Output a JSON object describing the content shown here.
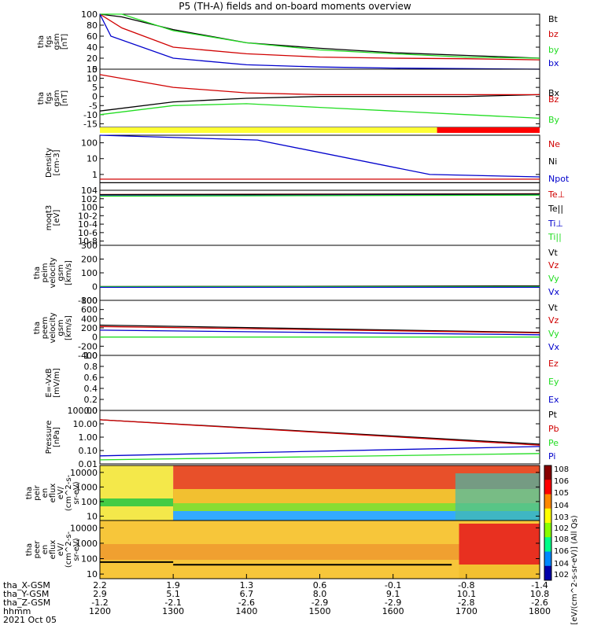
{
  "title": "P5 (TH-A) fields and on-board moments overview",
  "colors": {
    "black": "#000000",
    "red": "#d00000",
    "green": "#22dd22",
    "blue": "#0000cc",
    "yellow": "#ffff33",
    "bright_red": "#ff0000"
  },
  "chart_data": [
    {
      "id": "fgs_mag",
      "type": "line",
      "ylabel": [
        "tha",
        "fgs",
        "gsm",
        "[nT]"
      ],
      "ylim": [
        0,
        100
      ],
      "ticks": [
        "100",
        "80",
        "60",
        "40",
        "20",
        "0"
      ],
      "series": [
        {
          "name": "Bt",
          "color": "#000000",
          "x": [
            1200,
            1230,
            1300,
            1400,
            1500,
            1600,
            1700,
            1800
          ],
          "values": [
            100,
            95,
            72,
            48,
            38,
            30,
            25,
            20
          ]
        },
        {
          "name": "bz",
          "color": "#d00000",
          "x": [
            1200,
            1230,
            1300,
            1400,
            1500,
            1600,
            1700,
            1800
          ],
          "values": [
            100,
            75,
            40,
            28,
            22,
            20,
            19,
            17
          ]
        },
        {
          "name": "by",
          "color": "#22dd22",
          "x": [
            1200,
            1230,
            1300,
            1400,
            1500,
            1600,
            1700,
            1800
          ],
          "values": [
            100,
            100,
            70,
            48,
            35,
            28,
            22,
            20
          ]
        },
        {
          "name": "bx",
          "color": "#0000cc",
          "x": [
            1200,
            1215,
            1300,
            1400,
            1500,
            1600,
            1700,
            1800
          ],
          "values": [
            100,
            60,
            20,
            8,
            4,
            2,
            1,
            0
          ]
        }
      ]
    },
    {
      "id": "fgs_comp",
      "type": "line",
      "ylabel": [
        "tha",
        "fgs",
        "gsm",
        "[nT]"
      ],
      "ylim": [
        -17,
        15
      ],
      "ticks": [
        "15",
        "10",
        "5",
        "0",
        "-5",
        "-10",
        "-15"
      ],
      "series": [
        {
          "name": "Bx",
          "color": "#000000",
          "x": [
            1200,
            1300,
            1400,
            1500,
            1600,
            1700,
            1800
          ],
          "values": [
            -8,
            -3,
            -1,
            0,
            0,
            0,
            1
          ]
        },
        {
          "name": "Bz",
          "color": "#d00000",
          "x": [
            1200,
            1300,
            1400,
            1500,
            1600,
            1700,
            1800
          ],
          "values": [
            12,
            5,
            2,
            1,
            1,
            1,
            1
          ]
        },
        {
          "name": "By",
          "color": "#22dd22",
          "x": [
            1200,
            1300,
            1400,
            1500,
            1600,
            1700,
            1800
          ],
          "values": [
            -10,
            -5,
            -4,
            -6,
            -8,
            -10,
            -12
          ]
        }
      ]
    },
    {
      "id": "density",
      "type": "line",
      "ylabel": [
        "Density",
        "[cm-3]"
      ],
      "ylim": [
        0.1,
        300
      ],
      "log": true,
      "ticks": [
        "100",
        "10",
        "1"
      ],
      "series": [
        {
          "name": "Ne",
          "color": "#d00000",
          "x": [
            1200,
            1800
          ],
          "values": [
            0.5,
            0.5
          ]
        },
        {
          "name": "Ni",
          "color": "#000000",
          "x": [
            1200,
            1800
          ],
          "values": [
            0.3,
            0.3
          ]
        },
        {
          "name": "Npot",
          "color": "#0000cc",
          "x": [
            1200,
            1415,
            1650,
            1800
          ],
          "values": [
            300,
            150,
            1,
            0.7
          ]
        }
      ]
    },
    {
      "id": "temp",
      "type": "line",
      "ylabel": [
        "moqt3",
        "[eV]"
      ],
      "ylim": [
        1e-09,
        10000.0
      ],
      "log": true,
      "ticks": [
        "10^4",
        "10^2",
        "10^0",
        "10^-2",
        "10^-4",
        "10^-6",
        "10^-8"
      ],
      "series": [
        {
          "name": "Te⊥",
          "color": "#d00000",
          "x": [
            1200,
            1800
          ],
          "values": [
            1000,
            1500
          ]
        },
        {
          "name": "Te||",
          "color": "#000000",
          "x": [
            1200,
            1800
          ],
          "values": [
            900,
            1300
          ]
        },
        {
          "name": "Ti⊥",
          "color": "#0000cc",
          "x": [
            1200,
            1800
          ],
          "values": [
            500,
            800
          ]
        },
        {
          "name": "Ti||",
          "color": "#22dd22",
          "x": [
            1200,
            1800
          ],
          "values": [
            400,
            700
          ]
        }
      ]
    },
    {
      "id": "peim_vel",
      "type": "line",
      "ylabel": [
        "tha",
        "peim",
        "velocity",
        "gsm",
        "[km/s]"
      ],
      "ylim": [
        -100,
        300
      ],
      "ticks": [
        "300",
        "200",
        "100",
        "0",
        "-100"
      ],
      "series": [
        {
          "name": "Vt",
          "color": "#000000",
          "x": [
            1200,
            1800
          ],
          "values": [
            0,
            5
          ]
        },
        {
          "name": "Vz",
          "color": "#d00000",
          "x": [
            1200,
            1800
          ],
          "values": [
            0,
            0
          ]
        },
        {
          "name": "Vy",
          "color": "#22dd22",
          "x": [
            1200,
            1800
          ],
          "values": [
            0,
            0
          ]
        },
        {
          "name": "Vx",
          "color": "#0000cc",
          "x": [
            1200,
            1800
          ],
          "values": [
            -5,
            -5
          ]
        }
      ]
    },
    {
      "id": "peem_vel",
      "type": "line",
      "ylabel": [
        "tha",
        "peem",
        "velocity",
        "gsm",
        "[km/s]"
      ],
      "ylim": [
        -400,
        800
      ],
      "ticks": [
        "800",
        "600",
        "400",
        "200",
        "0",
        "-200",
        "-400"
      ],
      "series": [
        {
          "name": "Vt",
          "color": "#000000",
          "x": [
            1200,
            1800
          ],
          "values": [
            260,
            100
          ]
        },
        {
          "name": "Vz",
          "color": "#d00000",
          "x": [
            1200,
            1800
          ],
          "values": [
            230,
            90
          ]
        },
        {
          "name": "Vy",
          "color": "#22dd22",
          "x": [
            1200,
            1800
          ],
          "values": [
            0,
            0
          ]
        },
        {
          "name": "Vx",
          "color": "#0000cc",
          "x": [
            1200,
            1800
          ],
          "values": [
            150,
            50
          ]
        }
      ]
    },
    {
      "id": "efield",
      "type": "line",
      "ylabel": [
        "E=-VxB",
        "[mV/m]"
      ],
      "ylim": [
        0,
        1
      ],
      "ticks": [
        "1.0",
        "0.8",
        "0.6",
        "0.4",
        "0.2",
        "0.0"
      ],
      "series": [
        {
          "name": "Ez",
          "color": "#d00000",
          "x": [],
          "values": []
        },
        {
          "name": "Ey",
          "color": "#22dd22",
          "x": [],
          "values": []
        },
        {
          "name": "Ex",
          "color": "#0000cc",
          "x": [],
          "values": []
        }
      ]
    },
    {
      "id": "pressure",
      "type": "line",
      "ylabel": [
        "Pressure",
        "[nPa]"
      ],
      "ylim": [
        0.01,
        100
      ],
      "log": true,
      "ticks": [
        "100.00",
        "10.00",
        "1.00",
        "0.10",
        "0.01"
      ],
      "series": [
        {
          "name": "Pt",
          "color": "#000000",
          "x": [
            1200,
            1800
          ],
          "values": [
            20,
            0.3
          ]
        },
        {
          "name": "Pb",
          "color": "#d00000",
          "x": [
            1200,
            1800
          ],
          "values": [
            20,
            0.25
          ]
        },
        {
          "name": "Pe",
          "color": "#22dd22",
          "x": [
            1200,
            1800
          ],
          "values": [
            0.02,
            0.06
          ]
        },
        {
          "name": "Pi",
          "color": "#0000cc",
          "x": [
            1200,
            1800
          ],
          "values": [
            0.04,
            0.2
          ]
        }
      ]
    },
    {
      "id": "peir_spec",
      "type": "heatmap",
      "ylabel": [
        "tha",
        "peir",
        "en",
        "eflux",
        "eV/",
        "(cm^2-s-",
        "sr-eV)"
      ],
      "ylim": [
        5,
        30000
      ],
      "log": true,
      "ticks": [
        "10000",
        "1000",
        "100",
        "10"
      ]
    },
    {
      "id": "peer_spec",
      "type": "heatmap",
      "ylabel": [
        "tha",
        "peer",
        "en",
        "eflux",
        "eV/",
        "(cm^2-s-",
        "sr-eV)"
      ],
      "ylim": [
        5,
        30000
      ],
      "log": true,
      "ticks": [
        "10000",
        "1000",
        "100",
        "10"
      ]
    }
  ],
  "colorbar": {
    "label": "[eV/(cm^2-s-sr-eV)] (All Qs)",
    "ticks": [
      "10^8",
      "10^6",
      "10^5",
      "10^4",
      "10^3",
      "10^2",
      "10^8",
      "10^6",
      "10^4",
      "10^2"
    ]
  },
  "xaxis": {
    "x": [
      1200,
      1300,
      1400,
      1500,
      1600,
      1700,
      1800
    ],
    "row_labels": [
      "tha_X-GSM",
      "tha_Y-GSM",
      "tha_Z-GSM",
      "hhmm",
      "2021 Oct 05"
    ],
    "rows": [
      [
        "2.2",
        "1.9",
        "1.3",
        "0.6",
        "-0.1",
        "-0.8",
        "-1.4"
      ],
      [
        "2.9",
        "5.1",
        "6.7",
        "8.0",
        "9.1",
        "10.1",
        "10.8"
      ],
      [
        "-1.2",
        "-2.1",
        "-2.6",
        "-2.9",
        "-2.9",
        "-2.8",
        "-2.6"
      ],
      [
        "1200",
        "1300",
        "1400",
        "1500",
        "1600",
        "1700",
        "1800"
      ]
    ]
  }
}
